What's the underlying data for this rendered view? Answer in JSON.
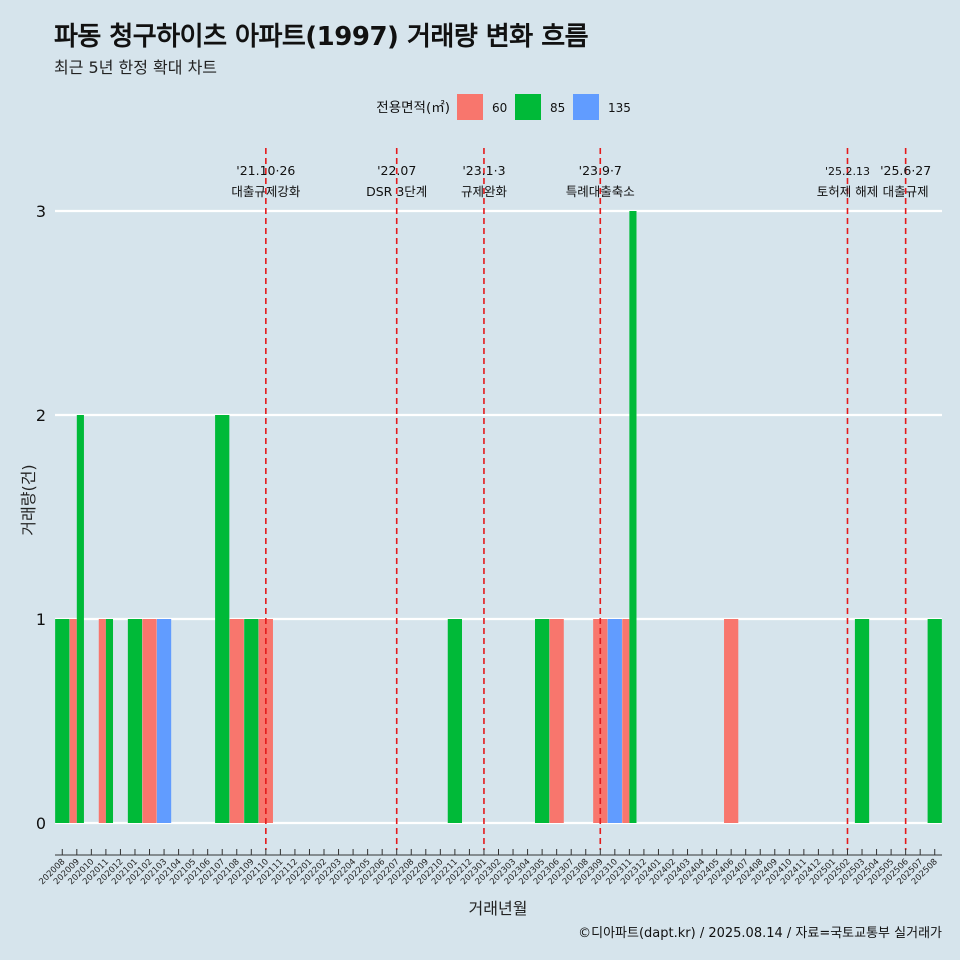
{
  "chart_data": {
    "type": "bar",
    "title": "파동 청구하이츠 아파트(1997) 거래량 변화 흐름",
    "subtitle": "최근 5년 한정 확대 차트",
    "xlabel": "거래년월",
    "ylabel": "거래량(건)",
    "ylim": [
      0,
      3
    ],
    "y_ticks": [
      0,
      1,
      2,
      3
    ],
    "legend_title": "전용면적(㎡)",
    "legend_position": "top",
    "caption": "©디아파트(dapt.kr) / 2025.08.14 / 자료=국토교통부 실거래가",
    "categories": [
      "202008",
      "202009",
      "202010",
      "202011",
      "202012",
      "202101",
      "202102",
      "202103",
      "202104",
      "202105",
      "202106",
      "202107",
      "202108",
      "202109",
      "202110",
      "202111",
      "202112",
      "202201",
      "202202",
      "202203",
      "202204",
      "202205",
      "202206",
      "202207",
      "202208",
      "202209",
      "202210",
      "202211",
      "202212",
      "202301",
      "202302",
      "202303",
      "202304",
      "202305",
      "202306",
      "202307",
      "202308",
      "202309",
      "202310",
      "202311",
      "202312",
      "202401",
      "202402",
      "202403",
      "202404",
      "202405",
      "202406",
      "202407",
      "202408",
      "202409",
      "202410",
      "202411",
      "202412",
      "202501",
      "202502",
      "202503",
      "202504",
      "202505",
      "202506",
      "202507",
      "202508"
    ],
    "series": [
      {
        "name": "60",
        "color": "#f8766d",
        "values": {
          "202009": 1,
          "202011": 1,
          "202102": 1,
          "202108": 1,
          "202110": 1,
          "202306": 1,
          "202309": 1,
          "202311": 1,
          "202406": 1
        }
      },
      {
        "name": "85",
        "color": "#00ba38",
        "values": {
          "202008": 1,
          "202009": 2,
          "202011": 1,
          "202101": 1,
          "202107": 2,
          "202109": 1,
          "202211": 1,
          "202305": 1,
          "202311": 3,
          "202503": 1,
          "202508": 1
        }
      },
      {
        "name": "135",
        "color": "#619cff",
        "values": {
          "202103": 1,
          "202310": 1
        }
      }
    ],
    "events": [
      {
        "date": "'21.10·26",
        "label": "대출규제강화",
        "month": "202110"
      },
      {
        "date": "'22.07",
        "label": "DSR 3단계",
        "month": "202207"
      },
      {
        "date": "'23.1·3",
        "label": "규제완화",
        "month": "202301"
      },
      {
        "date": "'23.9·7",
        "label": "특례대출축소",
        "month": "202309"
      },
      {
        "date": "'25.2.13",
        "label": "토허제 해제",
        "month": "202502"
      },
      {
        "date": "'25.6·27",
        "label": "대출규제",
        "month": "202506"
      }
    ]
  }
}
